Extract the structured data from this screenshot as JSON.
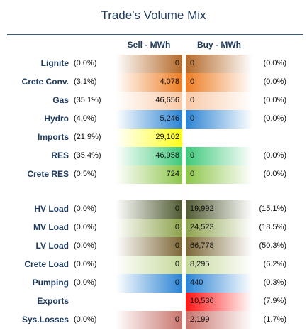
{
  "title": "Trade's Volume Mix",
  "columns": {
    "sell": "Sell - MWh",
    "buy": "Buy - MWh"
  },
  "rows": [
    {
      "label": "Lignite",
      "sell_pct": "(0.0%)",
      "sell": "0",
      "buy": "0",
      "buy_pct": "(0.0%)",
      "color": "#b46a2a"
    },
    {
      "label": "Crete Conv.",
      "sell_pct": "(3.1%)",
      "sell": "4,078",
      "buy": "0",
      "buy_pct": "(0.0%)",
      "color": "#ee7d22"
    },
    {
      "label": "Gas",
      "sell_pct": "(35.1%)",
      "sell": "46,656",
      "buy": "0",
      "buy_pct": "(0.0%)",
      "color": "#f9c9a6"
    },
    {
      "label": "Hydro",
      "sell_pct": "(4.0%)",
      "sell": "5,246",
      "buy": "0",
      "buy_pct": "(0.0%)",
      "color": "#2a83d4"
    },
    {
      "label": "Imports",
      "sell_pct": "(21.9%)",
      "sell": "29,102",
      "buy": "",
      "buy_pct": "",
      "color": "#ffff1a"
    },
    {
      "label": "RES",
      "sell_pct": "(35.4%)",
      "sell": "46,958",
      "buy": "0",
      "buy_pct": "(0.0%)",
      "color": "#3ec97a"
    },
    {
      "label": "Crete RES",
      "sell_pct": "(0.5%)",
      "sell": "724",
      "buy": "0",
      "buy_pct": "(0.0%)",
      "color": "#8dc64a"
    },
    {
      "label": "HV Load",
      "sell_pct": "(0.0%)",
      "sell": "0",
      "buy": "19,992",
      "buy_pct": "(15.1%)",
      "color": "#4f5a32"
    },
    {
      "label": "MV Load",
      "sell_pct": "(0.0%)",
      "sell": "0",
      "buy": "24,523",
      "buy_pct": "(18.5%)",
      "color": "#8ca24c"
    },
    {
      "label": "LV Load",
      "sell_pct": "(0.0%)",
      "sell": "0",
      "buy": "66,778",
      "buy_pct": "(50.3%)",
      "color": "#7c6636"
    },
    {
      "label": "Crete Load",
      "sell_pct": "(0.0%)",
      "sell": "0",
      "buy": "8,295",
      "buy_pct": "(6.2%)",
      "color": "#c4d89a"
    },
    {
      "label": "Pumping",
      "sell_pct": "(0.0%)",
      "sell": "0",
      "buy": "440",
      "buy_pct": "(0.3%)",
      "color": "#2a83d4"
    },
    {
      "label": "Exports",
      "sell_pct": "",
      "sell": "",
      "buy": "10,536",
      "buy_pct": "(7.9%)",
      "color": "#ff1414"
    },
    {
      "label": "Sys.Losses",
      "sell_pct": "(0.0%)",
      "sell": "0",
      "buy": "2,199",
      "buy_pct": "(1.7%)",
      "color": "#c9746d"
    }
  ]
}
